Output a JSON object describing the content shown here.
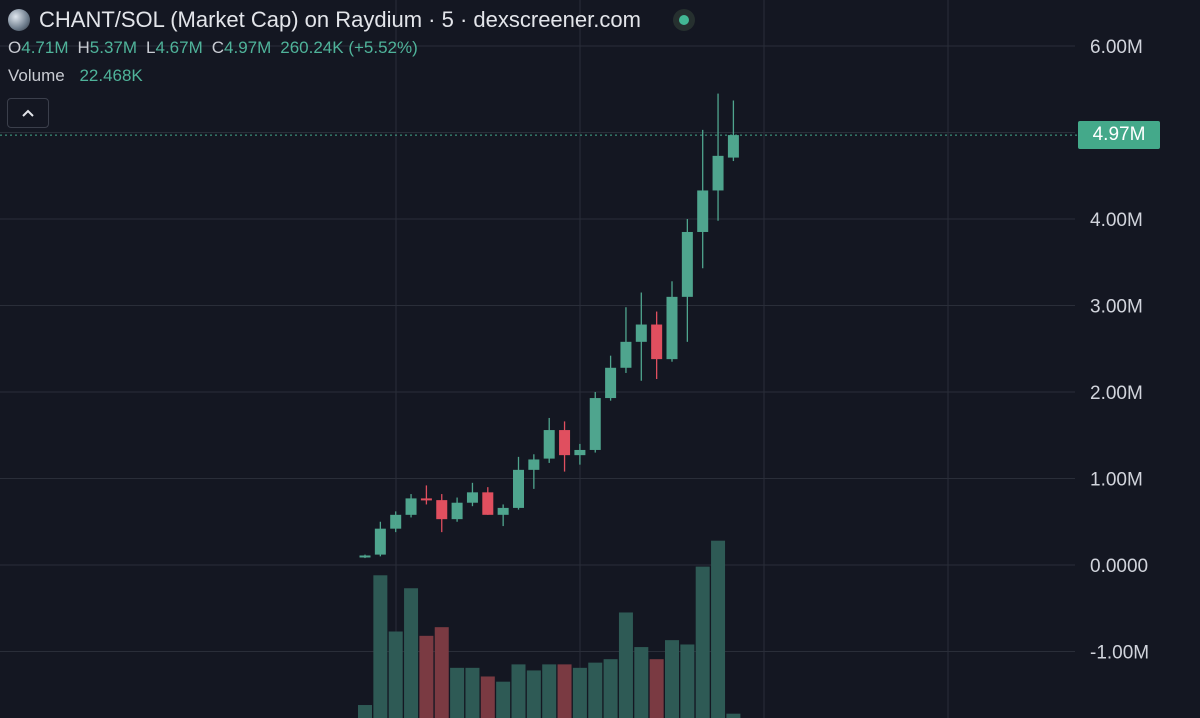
{
  "header": {
    "title": "CHANT/SOL (Market Cap) on Raydium · 5 · dexscreener.com",
    "ohlc": {
      "o_label": "O",
      "o_value": "4.71M",
      "h_label": "H",
      "h_value": "5.37M",
      "l_label": "L",
      "l_value": "4.67M",
      "c_label": "C",
      "c_value": "4.97M",
      "change": "260.24K (+5.52%)"
    },
    "volume_label": "Volume",
    "volume_value": "22.468K"
  },
  "collapse_icon": "chevron-up-icon",
  "price_tag": "4.97M",
  "colors": {
    "up": "#4fa58e",
    "down": "#e04f5f",
    "vol_up": "#2e5a55",
    "vol_down": "#7a3a42",
    "grid": "#2a2e39",
    "axis_text": "#d1d4dc",
    "tag": "#44a98a"
  },
  "chart_data": {
    "type": "candlestick",
    "y_ticks": [
      "6.00M",
      "4.00M",
      "3.00M",
      "2.00M",
      "1.00M",
      "0.0000",
      "-1.00M"
    ],
    "ylim_millions": [
      -1.8,
      6.6
    ],
    "last_close_millions": 4.97,
    "candles": [
      {
        "o": 0.09,
        "h": 0.12,
        "l": 0.08,
        "c": 0.11
      },
      {
        "o": 0.12,
        "h": 0.5,
        "l": 0.1,
        "c": 0.42
      },
      {
        "o": 0.42,
        "h": 0.62,
        "l": 0.38,
        "c": 0.58
      },
      {
        "o": 0.58,
        "h": 0.82,
        "l": 0.55,
        "c": 0.77
      },
      {
        "o": 0.77,
        "h": 0.92,
        "l": 0.7,
        "c": 0.75
      },
      {
        "o": 0.75,
        "h": 0.82,
        "l": 0.38,
        "c": 0.53
      },
      {
        "o": 0.53,
        "h": 0.78,
        "l": 0.5,
        "c": 0.72
      },
      {
        "o": 0.72,
        "h": 0.95,
        "l": 0.68,
        "c": 0.84
      },
      {
        "o": 0.84,
        "h": 0.9,
        "l": 0.58,
        "c": 0.58
      },
      {
        "o": 0.58,
        "h": 0.7,
        "l": 0.45,
        "c": 0.66
      },
      {
        "o": 0.66,
        "h": 1.25,
        "l": 0.64,
        "c": 1.1
      },
      {
        "o": 1.1,
        "h": 1.28,
        "l": 0.88,
        "c": 1.22
      },
      {
        "o": 1.23,
        "h": 1.7,
        "l": 1.18,
        "c": 1.56
      },
      {
        "o": 1.56,
        "h": 1.66,
        "l": 1.08,
        "c": 1.27
      },
      {
        "o": 1.27,
        "h": 1.4,
        "l": 1.16,
        "c": 1.33
      },
      {
        "o": 1.33,
        "h": 2.0,
        "l": 1.3,
        "c": 1.93
      },
      {
        "o": 1.93,
        "h": 2.42,
        "l": 1.9,
        "c": 2.28
      },
      {
        "o": 2.28,
        "h": 2.98,
        "l": 2.22,
        "c": 2.58
      },
      {
        "o": 2.58,
        "h": 3.15,
        "l": 2.13,
        "c": 2.78
      },
      {
        "o": 2.78,
        "h": 2.93,
        "l": 2.15,
        "c": 2.38
      },
      {
        "o": 2.38,
        "h": 3.28,
        "l": 2.35,
        "c": 3.1
      },
      {
        "o": 3.1,
        "h": 4.0,
        "l": 2.58,
        "c": 3.85
      },
      {
        "o": 3.85,
        "h": 5.03,
        "l": 3.43,
        "c": 4.33
      },
      {
        "o": 4.33,
        "h": 5.45,
        "l": 3.98,
        "c": 4.73
      },
      {
        "o": 4.71,
        "h": 5.37,
        "l": 4.67,
        "c": 4.97
      }
    ],
    "volumes": [
      {
        "v": 0.15,
        "dir": "up"
      },
      {
        "v": 1.65,
        "dir": "up"
      },
      {
        "v": 1.0,
        "dir": "up"
      },
      {
        "v": 1.5,
        "dir": "up"
      },
      {
        "v": 0.95,
        "dir": "down"
      },
      {
        "v": 1.05,
        "dir": "down"
      },
      {
        "v": 0.58,
        "dir": "up"
      },
      {
        "v": 0.58,
        "dir": "up"
      },
      {
        "v": 0.48,
        "dir": "down"
      },
      {
        "v": 0.42,
        "dir": "up"
      },
      {
        "v": 0.62,
        "dir": "up"
      },
      {
        "v": 0.55,
        "dir": "up"
      },
      {
        "v": 0.62,
        "dir": "up"
      },
      {
        "v": 0.62,
        "dir": "down"
      },
      {
        "v": 0.58,
        "dir": "up"
      },
      {
        "v": 0.64,
        "dir": "up"
      },
      {
        "v": 0.68,
        "dir": "up"
      },
      {
        "v": 1.22,
        "dir": "up"
      },
      {
        "v": 0.82,
        "dir": "up"
      },
      {
        "v": 0.68,
        "dir": "down"
      },
      {
        "v": 0.9,
        "dir": "up"
      },
      {
        "v": 0.85,
        "dir": "up"
      },
      {
        "v": 1.75,
        "dir": "up"
      },
      {
        "v": 2.05,
        "dir": "up"
      },
      {
        "v": 0.05,
        "dir": "up"
      }
    ]
  }
}
